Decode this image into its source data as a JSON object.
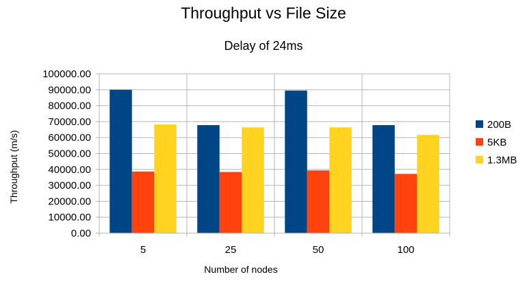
{
  "chart_data": {
    "type": "bar",
    "title": "Throughput vs File Size",
    "subtitle": "Delay of 24ms",
    "xlabel": "Number of nodes",
    "ylabel": "Throughput (m/s)",
    "categories": [
      "5",
      "25",
      "50",
      "100"
    ],
    "series": [
      {
        "name": "200B",
        "color": "#004586",
        "values": [
          90000,
          67800,
          89500,
          67800
        ]
      },
      {
        "name": "5KB",
        "color": "#ff420e",
        "values": [
          38700,
          38400,
          39400,
          37200
        ]
      },
      {
        "name": "1.3MB",
        "color": "#ffd320",
        "values": [
          68200,
          66400,
          66400,
          61700
        ]
      }
    ],
    "ylim": [
      0,
      100000
    ],
    "yticks": [
      "0.00",
      "10000.00",
      "20000.00",
      "30000.00",
      "40000.00",
      "50000.00",
      "60000.00",
      "70000.00",
      "80000.00",
      "90000.00",
      "100000.00"
    ],
    "grid": true,
    "legend_position": "right"
  }
}
